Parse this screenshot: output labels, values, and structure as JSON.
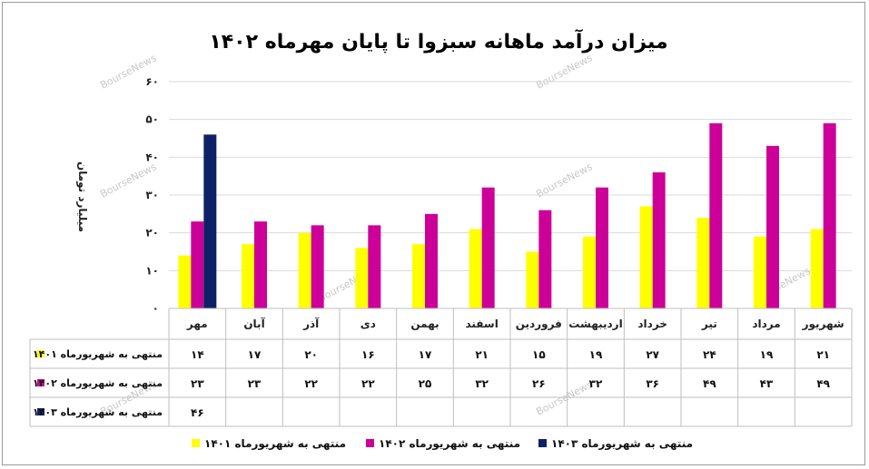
{
  "chart_data": {
    "type": "bar",
    "title": "میزان درآمد ماهانه سبزوا تا پایان مهرماه ۱۴۰۲",
    "ylabel": "میلیارد تومان",
    "ylim": [
      0,
      60
    ],
    "yticks": [
      "۰",
      "۱۰",
      "۲۰",
      "۳۰",
      "۴۰",
      "۵۰",
      "۶۰"
    ],
    "categories": [
      "مهر",
      "آبان",
      "آذر",
      "دی",
      "بهمن",
      "اسفند",
      "فروردین",
      "اردیبهشت",
      "خرداد",
      "تیر",
      "مرداد",
      "شهریور"
    ],
    "series": [
      {
        "name": "منتهی به شهریورماه ۱۴۰۱",
        "color": "#ffff00",
        "values": [
          14,
          17,
          20,
          16,
          17,
          21,
          15,
          19,
          27,
          24,
          19,
          21
        ],
        "labels": [
          "۱۴",
          "۱۷",
          "۲۰",
          "۱۶",
          "۱۷",
          "۲۱",
          "۱۵",
          "۱۹",
          "۲۷",
          "۲۴",
          "۱۹",
          "۲۱"
        ]
      },
      {
        "name": "منتهی به شهریورماه ۱۴۰۲",
        "color": "#cc0099",
        "values": [
          23,
          23,
          22,
          22,
          25,
          32,
          26,
          32,
          36,
          49,
          43,
          49
        ],
        "labels": [
          "۲۳",
          "۲۳",
          "۲۲",
          "۲۲",
          "۲۵",
          "۳۲",
          "۲۶",
          "۳۲",
          "۳۶",
          "۴۹",
          "۴۳",
          "۴۹"
        ]
      },
      {
        "name": "منتهی به شهریورماه ۱۴۰۳",
        "color": "#0d2266",
        "values": [
          46,
          null,
          null,
          null,
          null,
          null,
          null,
          null,
          null,
          null,
          null,
          null
        ],
        "labels": [
          "۴۶",
          "",
          "",
          "",
          "",
          "",
          "",
          "",
          "",
          "",
          "",
          ""
        ]
      }
    ],
    "watermark": "BourseNews",
    "grid": true,
    "legend_placement": "bottom"
  }
}
